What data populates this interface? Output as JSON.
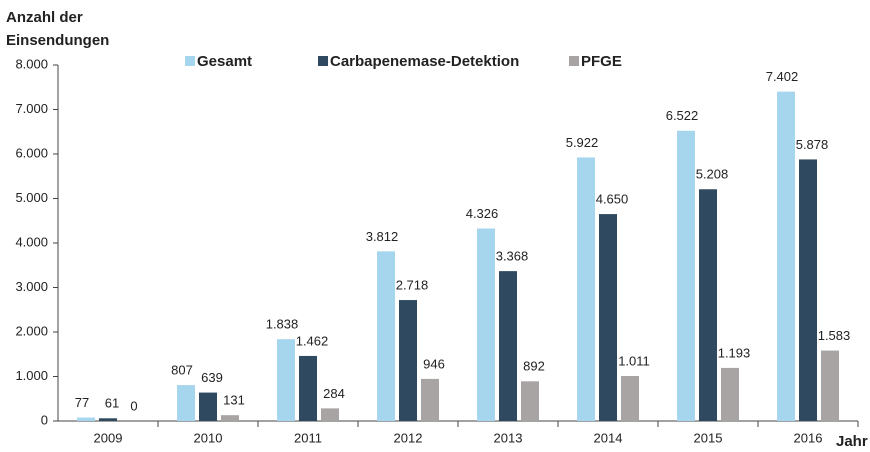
{
  "chart_data": {
    "type": "bar",
    "y_label": [
      "Anzahl der",
      "Einsendungen"
    ],
    "x_label": "Jahr",
    "categories": [
      "2009",
      "2010",
      "2011",
      "2012",
      "2013",
      "2014",
      "2015",
      "2016"
    ],
    "series": [
      {
        "name": "Gesamt",
        "color": "#a6d5ee",
        "values": [
          77,
          807,
          1838,
          3812,
          4326,
          5922,
          6522,
          7402
        ],
        "value_labels": [
          "77",
          "807",
          "1.838",
          "3.812",
          "4.326",
          "5.922",
          "6.522",
          "7.402"
        ]
      },
      {
        "name": "Carbapenemase-Detektion",
        "color": "#2f4a60",
        "values": [
          61,
          639,
          1462,
          2718,
          3368,
          4650,
          5208,
          5878
        ],
        "value_labels": [
          "61",
          "639",
          "1.462",
          "2.718",
          "3.368",
          "4.650",
          "5.208",
          "5.878"
        ]
      },
      {
        "name": "PFGE",
        "color": "#a8a4a4",
        "values": [
          0,
          131,
          284,
          946,
          892,
          1011,
          1193,
          1583
        ],
        "value_labels": [
          "0",
          "131",
          "284",
          "946",
          "892",
          "1.011",
          "1.193",
          "1.583"
        ]
      }
    ],
    "ylim": [
      0,
      8000
    ],
    "yticks": [
      0,
      {
        "value": 1000,
        "label": "1.000"
      },
      {
        "value": 2000,
        "label": "2.000"
      },
      {
        "value": 3000,
        "label": "3.000"
      },
      {
        "value": 4000,
        "label": "4.000"
      },
      {
        "value": 5000,
        "label": "5.000"
      },
      {
        "value": 6000,
        "label": "6.000"
      },
      {
        "value": 7000,
        "label": "7.000"
      },
      {
        "value": 8000,
        "label": "8.000"
      }
    ],
    "grid": false
  }
}
